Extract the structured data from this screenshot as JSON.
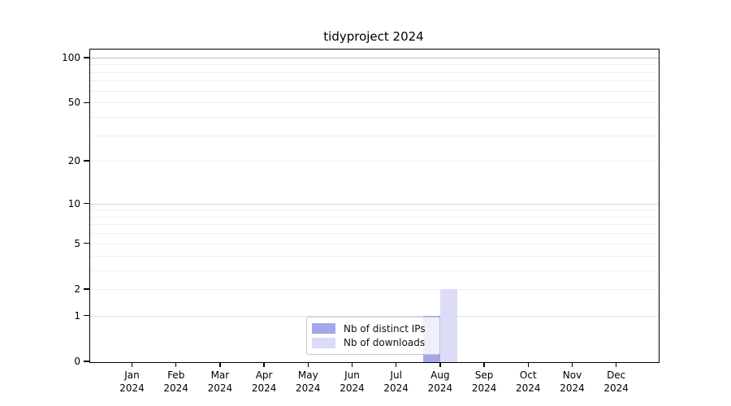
{
  "title": "tidyproject 2024",
  "chart_data": {
    "type": "bar",
    "title": "tidyproject 2024",
    "categories": [
      "Jan",
      "Feb",
      "Mar",
      "Apr",
      "May",
      "Jun",
      "Jul",
      "Aug",
      "Sep",
      "Oct",
      "Nov",
      "Dec"
    ],
    "category_year": "2024",
    "series": [
      {
        "name": "Nb of distinct IPs",
        "color": "#a6a6ec",
        "values": [
          0,
          0,
          0,
          0,
          0,
          0,
          0,
          1,
          0,
          0,
          0,
          0
        ]
      },
      {
        "name": "Nb of downloads",
        "color": "#dcdcf8",
        "values": [
          0,
          0,
          0,
          0,
          0,
          0,
          0,
          2,
          0,
          0,
          0,
          0
        ]
      }
    ],
    "xlabel": "",
    "ylabel": "",
    "yscale": "log1p",
    "ylim": [
      0,
      113
    ],
    "yticks": [
      0,
      1,
      2,
      5,
      10,
      20,
      50,
      100
    ],
    "grid": "horizontal, log minor lines at 1-9, 10-90, 100",
    "legend_position": "inside lower-center"
  }
}
